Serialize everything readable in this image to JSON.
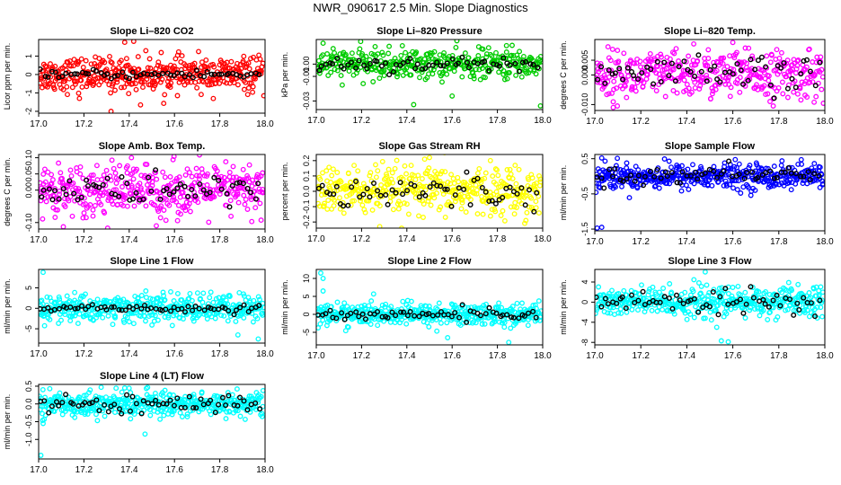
{
  "page": {
    "title": "NWR_090617  2.5 Min. Slope Diagnostics"
  },
  "chart_data": [
    {
      "type": "scatter",
      "title": "Slope Li–820 CO2",
      "ylabel": "Licor ppm per min.",
      "color": "#ff0000",
      "xlim": [
        17.0,
        18.0
      ],
      "ylim": [
        -2.1,
        1.9
      ],
      "xticks": [
        "17.0",
        "17.2",
        "17.4",
        "17.6",
        "17.8",
        "18.0"
      ],
      "yticks": [
        {
          "v": -2,
          "l": "-2"
        },
        {
          "v": -1,
          "l": "-1"
        },
        {
          "v": 0,
          "l": "0"
        },
        {
          "v": 1,
          "l": "1"
        }
      ],
      "sd": 0.45,
      "blackSd": 0.12,
      "n": 420,
      "nBlack": 60,
      "outliers": [
        [
          17.38,
          1.75
        ],
        [
          17.42,
          1.8
        ],
        [
          17.32,
          -2.0
        ],
        [
          17.45,
          -1.65
        ],
        [
          17.18,
          -1.3
        ]
      ]
    },
    {
      "type": "scatter",
      "title": "Slope Li–820 Pressure",
      "ylabel": "kPa per min.",
      "color": "#00cc00",
      "xlim": [
        17.0,
        18.0
      ],
      "ylim": [
        -0.037,
        0.02
      ],
      "xticks": [
        "17.0",
        "17.2",
        "17.4",
        "17.6",
        "17.8",
        "18.0"
      ],
      "yticks": [
        {
          "v": -0.03,
          "l": "-0.03"
        },
        {
          "v": -0.01,
          "l": "-0.01"
        },
        {
          "v": 0.0,
          "l": "0.00"
        }
      ],
      "sd": 0.006,
      "blackSd": 0.003,
      "n": 380,
      "nBlack": 60,
      "outliers": [
        [
          17.03,
          0.017
        ],
        [
          17.43,
          -0.033
        ],
        [
          17.99,
          -0.034
        ],
        [
          17.84,
          0.015
        ],
        [
          17.6,
          -0.026
        ]
      ]
    },
    {
      "type": "scatter",
      "title": "Slope Li–820 Temp.",
      "ylabel": "degrees C per min.",
      "color": "#ff00ff",
      "xlim": [
        17.0,
        18.0
      ],
      "ylim": [
        -0.012,
        0.012
      ],
      "xticks": [
        "17.0",
        "17.2",
        "17.4",
        "17.6",
        "17.8",
        "18.0"
      ],
      "yticks": [
        {
          "v": -0.01,
          "l": "-0.010"
        },
        {
          "v": 0.0,
          "l": "0.000"
        },
        {
          "v": 0.005,
          "l": "0.005"
        }
      ],
      "sd": 0.004,
      "blackSd": 0.003,
      "n": 400,
      "nBlack": 60,
      "outliers": [
        [
          17.6,
          0.011
        ],
        [
          17.43,
          0.0105
        ],
        [
          17.08,
          -0.011
        ]
      ]
    },
    {
      "type": "scatter",
      "title": "Slope Amb. Box Temp.",
      "ylabel": "degrees C per min.",
      "color": "#ff00ff",
      "xlim": [
        17.0,
        18.0
      ],
      "ylim": [
        -0.12,
        0.11
      ],
      "xticks": [
        "17.0",
        "17.2",
        "17.4",
        "17.6",
        "17.8",
        "18.0"
      ],
      "yticks": [
        {
          "v": -0.1,
          "l": "-0.10"
        },
        {
          "v": 0.0,
          "l": "0.00"
        },
        {
          "v": 0.05,
          "l": "0.05"
        },
        {
          "v": 0.1,
          "l": "0.10"
        }
      ],
      "sd": 0.04,
      "blackSd": 0.025,
      "n": 420,
      "nBlack": 60,
      "outliers": [
        [
          17.41,
          0.1
        ],
        [
          17.52,
          -0.11
        ]
      ]
    },
    {
      "type": "scatter",
      "title": "Slope Gas Stream RH",
      "ylabel": "percent per min.",
      "color": "#ffff00",
      "xlim": [
        17.0,
        18.0
      ],
      "ylim": [
        -0.24,
        0.24
      ],
      "xticks": [
        "17.0",
        "17.2",
        "17.4",
        "17.6",
        "17.8",
        "18.0"
      ],
      "yticks": [
        {
          "v": -0.2,
          "l": "-0.2"
        },
        {
          "v": -0.1,
          "l": "-0.1"
        },
        {
          "v": 0.0,
          "l": "0.0"
        },
        {
          "v": 0.1,
          "l": "0.1"
        },
        {
          "v": 0.2,
          "l": "0.2"
        }
      ],
      "sd": 0.08,
      "blackSd": 0.05,
      "n": 420,
      "nBlack": 60,
      "outliers": [
        [
          17.28,
          -0.23
        ],
        [
          17.5,
          0.22
        ]
      ]
    },
    {
      "type": "scatter",
      "title": "Slope Sample Flow",
      "ylabel": "ml/min per min.",
      "color": "#0000ff",
      "xlim": [
        17.0,
        18.0
      ],
      "ylim": [
        -1.55,
        0.62
      ],
      "xticks": [
        "17.0",
        "17.2",
        "17.4",
        "17.6",
        "17.8",
        "18.0"
      ],
      "yticks": [
        {
          "v": -1.5,
          "l": "-1.5"
        },
        {
          "v": -0.5,
          "l": "-0.5"
        },
        {
          "v": 0.5,
          "l": "0.5"
        }
      ],
      "sd": 0.18,
      "blackSd": 0.12,
      "n": 440,
      "nBlack": 60,
      "outliers": [
        [
          17.01,
          -1.47
        ],
        [
          17.03,
          -1.45
        ],
        [
          17.03,
          0.52
        ]
      ]
    },
    {
      "type": "scatter",
      "title": "Slope Line 1 Flow",
      "ylabel": "ml/min per min.",
      "color": "#00ffff",
      "xlim": [
        17.0,
        18.0
      ],
      "ylim": [
        -8.5,
        9.5
      ],
      "xticks": [
        "17.0",
        "17.2",
        "17.4",
        "17.6",
        "17.8",
        "18.0"
      ],
      "yticks": [
        {
          "v": -5,
          "l": "-5"
        },
        {
          "v": 0,
          "l": "0"
        },
        {
          "v": 5,
          "l": "5"
        }
      ],
      "sd": 1.7,
      "blackSd": 0.5,
      "n": 440,
      "nBlack": 60,
      "outliers": [
        [
          17.02,
          8.8
        ],
        [
          17.97,
          -7.5
        ],
        [
          17.88,
          -6.5
        ]
      ]
    },
    {
      "type": "scatter",
      "title": "Slope Line 2 Flow",
      "ylabel": "ml/min per min.",
      "color": "#00ffff",
      "xlim": [
        17.0,
        18.0
      ],
      "ylim": [
        -8.5,
        12.5
      ],
      "xticks": [
        "17.0",
        "17.2",
        "17.4",
        "17.6",
        "17.8",
        "18.0"
      ],
      "yticks": [
        {
          "v": -5,
          "l": "-5"
        },
        {
          "v": 0,
          "l": "0"
        },
        {
          "v": 5,
          "l": "5"
        },
        {
          "v": 10,
          "l": "10"
        }
      ],
      "sd": 1.5,
      "blackSd": 0.8,
      "n": 440,
      "nBlack": 60,
      "outliers": [
        [
          17.02,
          11.5
        ],
        [
          17.03,
          10.0
        ],
        [
          17.58,
          -6.5
        ],
        [
          17.85,
          -7.8
        ],
        [
          17.03,
          6.5
        ]
      ]
    },
    {
      "type": "scatter",
      "title": "Slope Line 3 Flow",
      "ylabel": "ml/min per min.",
      "color": "#00ffff",
      "xlim": [
        17.0,
        18.0
      ],
      "ylim": [
        -8.5,
        6.5
      ],
      "xticks": [
        "17.0",
        "17.2",
        "17.4",
        "17.6",
        "17.8",
        "18.0"
      ],
      "yticks": [
        {
          "v": -8,
          "l": "-8"
        },
        {
          "v": -4,
          "l": "-4"
        },
        {
          "v": 0,
          "l": "0"
        },
        {
          "v": 4,
          "l": "4"
        }
      ],
      "sd": 1.5,
      "blackSd": 1.2,
      "n": 440,
      "nBlack": 60,
      "outliers": [
        [
          17.48,
          6.0
        ],
        [
          17.55,
          -7.7
        ],
        [
          17.58,
          -7.9
        ],
        [
          17.53,
          -5.0
        ]
      ]
    },
    {
      "type": "scatter",
      "title": "Slope Line 4 (LT) Flow",
      "ylabel": "ml/min per min.",
      "color": "#00ffff",
      "xlim": [
        17.0,
        18.0
      ],
      "ylim": [
        -1.55,
        0.55
      ],
      "xticks": [
        "17.0",
        "17.2",
        "17.4",
        "17.6",
        "17.8",
        "18.0"
      ],
      "yticks": [
        {
          "v": -1.0,
          "l": "-1.0"
        },
        {
          "v": -0.5,
          "l": "-0.5"
        },
        {
          "v": 0.0,
          "l": "0.0"
        },
        {
          "v": 0.5,
          "l": "0.5"
        }
      ],
      "sd": 0.17,
      "blackSd": 0.12,
      "n": 440,
      "nBlack": 60,
      "outliers": [
        [
          17.01,
          -1.45
        ],
        [
          17.38,
          0.45
        ],
        [
          17.47,
          -0.85
        ],
        [
          17.02,
          -0.55
        ]
      ]
    }
  ]
}
